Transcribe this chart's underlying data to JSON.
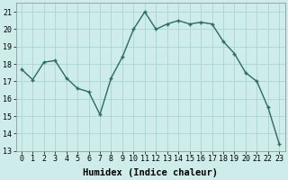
{
  "x": [
    0,
    1,
    2,
    3,
    4,
    5,
    6,
    7,
    8,
    9,
    10,
    11,
    12,
    13,
    14,
    15,
    16,
    17,
    18,
    19,
    20,
    21,
    22,
    23
  ],
  "y": [
    17.7,
    17.1,
    18.1,
    18.2,
    17.2,
    16.6,
    16.4,
    15.1,
    17.2,
    18.4,
    20.0,
    21.0,
    20.0,
    20.3,
    20.5,
    20.3,
    20.4,
    20.3,
    19.3,
    18.6,
    17.5,
    17.0,
    15.5,
    13.4
  ],
  "line_color": "#2d6b5e",
  "marker": "+",
  "marker_size": 3,
  "bg_color": "#cdecea",
  "grid_color": "#b0d8d4",
  "xlabel": "Humidex (Indice chaleur)",
  "ylim": [
    13,
    21.5
  ],
  "xlim": [
    -0.5,
    23.5
  ],
  "yticks": [
    13,
    14,
    15,
    16,
    17,
    18,
    19,
    20,
    21
  ],
  "xticks": [
    0,
    1,
    2,
    3,
    4,
    5,
    6,
    7,
    8,
    9,
    10,
    11,
    12,
    13,
    14,
    15,
    16,
    17,
    18,
    19,
    20,
    21,
    22,
    23
  ],
  "xlabel_fontsize": 7.5,
  "tick_fontsize": 6.0,
  "linewidth": 1.0,
  "markeredgewidth": 1.0
}
